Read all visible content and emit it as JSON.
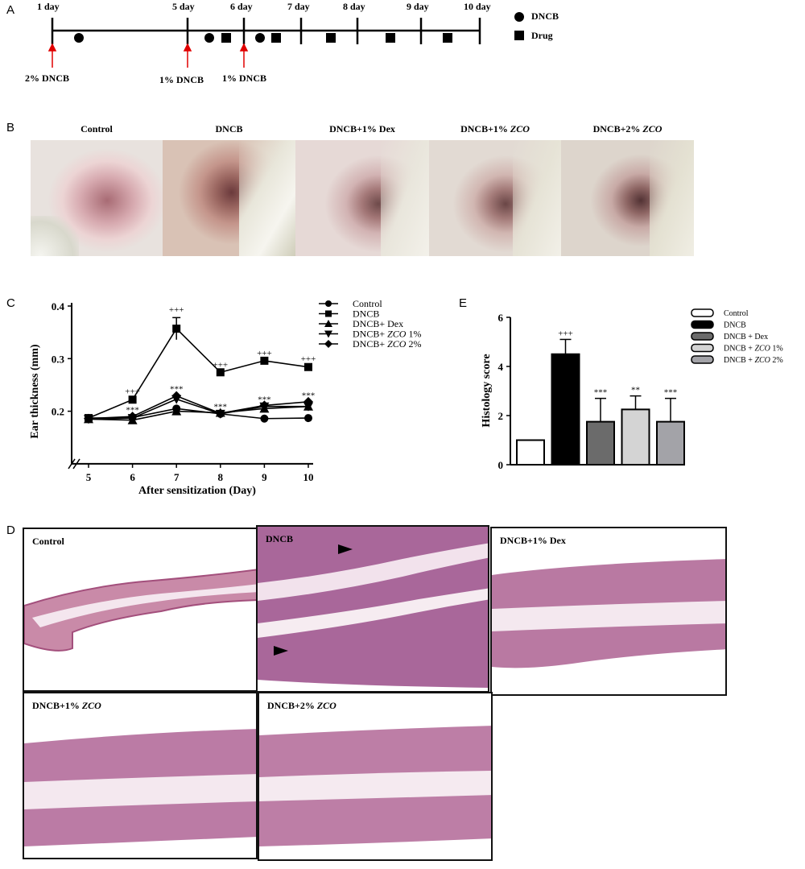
{
  "panels": {
    "a": "A",
    "b": "B",
    "c": "C",
    "d": "D",
    "e": "E"
  },
  "timeline": {
    "days": [
      "1 day",
      "5 day",
      "6 day",
      "7 day",
      "8 day",
      "9 day",
      "10 day"
    ],
    "legend_dncb": "DNCB",
    "legend_drug": "Drug",
    "arrows": [
      "2% DNCB",
      "1% DNCB",
      "1% DNCB"
    ]
  },
  "photos": {
    "labels": [
      "Control",
      "DNCB",
      "DNCB+1% Dex",
      "DNCB+1% ",
      "DNCB+2% "
    ],
    "italic": [
      "",
      "",
      "",
      "ZCO",
      "ZCO"
    ]
  },
  "histology": {
    "control": "Control",
    "dncb": "DNCB",
    "dex": "DNCB+1% Dex",
    "zco1_prefix": "DNCB+1% ",
    "zco2_prefix": "DNCB+2% ",
    "zco": "ZCO"
  },
  "chart_data": [
    {
      "type": "line",
      "ylabel": "Ear thickness (mm)",
      "xlabel": "After sensitization (Day)",
      "x": [
        5,
        6,
        7,
        8,
        9,
        10
      ],
      "ylim": [
        0.1,
        0.4
      ],
      "yticks": [
        "0.2",
        "0.3",
        "0.4"
      ],
      "series": [
        {
          "name": "Control",
          "marker": "circle",
          "values": [
            0.187,
            0.188,
            0.205,
            0.195,
            0.186,
            0.187
          ]
        },
        {
          "name": "DNCB",
          "marker": "square",
          "values": [
            0.187,
            0.222,
            0.357,
            0.274,
            0.296,
            0.284
          ]
        },
        {
          "name": "DNCB+ Dex",
          "marker": "triangle-up",
          "values": [
            0.185,
            0.183,
            0.2,
            0.197,
            0.205,
            0.209
          ]
        },
        {
          "name": "DNCB+ ZCO 1%",
          "marker": "triangle-down",
          "values": [
            0.185,
            0.187,
            0.223,
            0.195,
            0.209,
            0.209
          ]
        },
        {
          "name": "DNCB+ ZCO 2%",
          "marker": "diamond",
          "values": [
            0.186,
            0.19,
            0.229,
            0.196,
            0.211,
            0.218
          ]
        }
      ],
      "legend_labels": [
        "Control",
        "DNCB",
        "DNCB+ Dex",
        "DNCB+ ",
        "DNCB+ "
      ],
      "legend_italic": [
        "",
        "",
        "",
        "ZCO",
        "ZCO"
      ],
      "legend_suffix": [
        "",
        "",
        "",
        " 1%",
        " 2%"
      ],
      "annotations_plus": [
        {
          "x": 6,
          "y": 0.232,
          "text": "+++"
        },
        {
          "x": 7,
          "y": 0.388,
          "text": "+++"
        },
        {
          "x": 8,
          "y": 0.283,
          "text": "+++"
        },
        {
          "x": 9,
          "y": 0.305,
          "text": "+++"
        },
        {
          "x": 10,
          "y": 0.294,
          "text": "+++"
        }
      ],
      "annotations_star": [
        {
          "x": 6,
          "y": 0.197,
          "text": "***"
        },
        {
          "x": 7,
          "y": 0.237,
          "text": "***"
        },
        {
          "x": 8,
          "y": 0.203,
          "text": "***"
        },
        {
          "x": 9,
          "y": 0.217,
          "text": "***"
        },
        {
          "x": 10,
          "y": 0.225,
          "text": "***"
        }
      ]
    },
    {
      "type": "bar",
      "ylabel": "Histology score",
      "categories": [
        "Control",
        "DNCB",
        "DNCB + Dex",
        "DNCB + ZCO 1%",
        "DNCB + ZCO 2%"
      ],
      "values": [
        1.0,
        4.5,
        1.75,
        2.25,
        1.75
      ],
      "errors": [
        0,
        0.6,
        0.95,
        0.55,
        0.95
      ],
      "ylim": [
        0,
        6
      ],
      "yticks": [
        "0",
        "2",
        "4",
        "6"
      ],
      "colors": [
        "#ffffff",
        "#000000",
        "#6b6b6b",
        "#d4d4d4",
        "#a3a3a8"
      ],
      "significance": [
        "",
        "+++",
        "***",
        "**",
        "***"
      ],
      "legend_labels": [
        "Control",
        "DNCB",
        "DNCB + Dex",
        "DNCB + ",
        "DNCB + "
      ],
      "legend_italic": [
        "",
        "",
        "",
        "ZCO",
        "ZCO"
      ],
      "legend_suffix": [
        "",
        "",
        "",
        " 1%",
        " 2%"
      ]
    }
  ]
}
